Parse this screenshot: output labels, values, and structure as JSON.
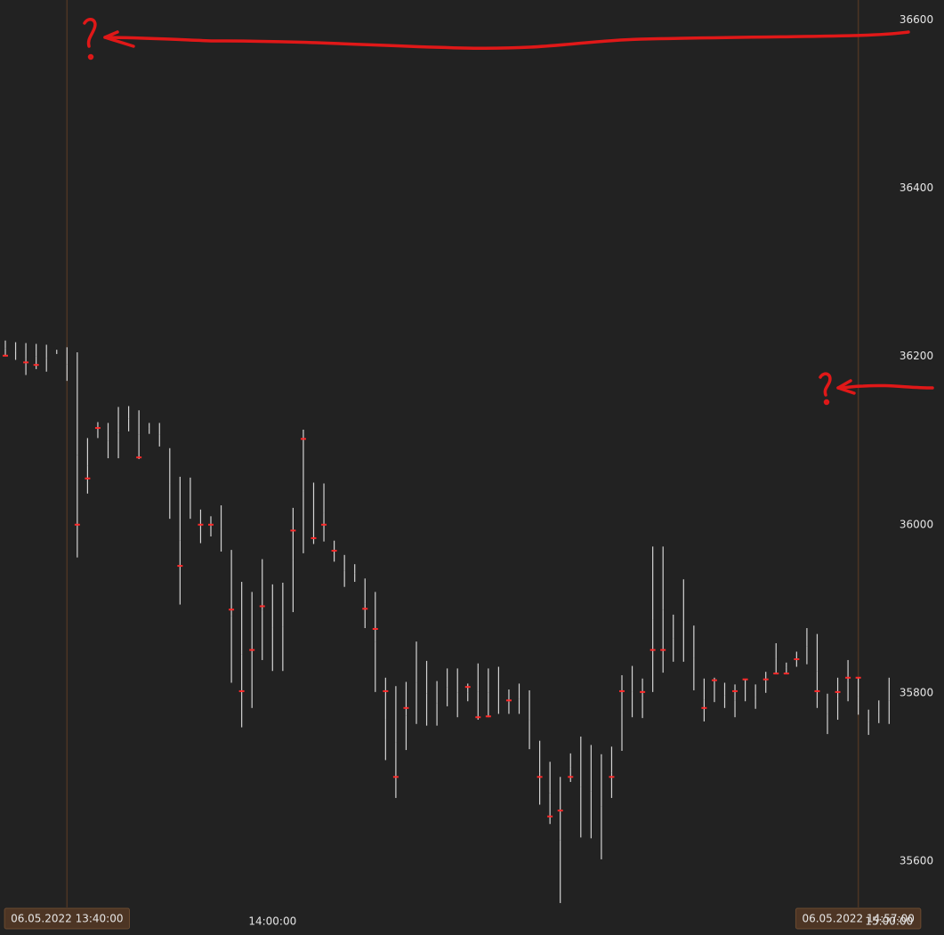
{
  "chart_data": {
    "type": "range-bar",
    "categories": [
      null,
      null,
      null,
      null,
      null,
      null,
      "06.05.2022 13:40:00",
      null,
      null,
      null,
      null,
      null,
      null,
      null,
      null,
      null,
      null,
      null,
      null,
      null,
      null,
      null,
      null,
      null,
      null,
      null,
      "14:00:00",
      null,
      null,
      null,
      null,
      null,
      null,
      null,
      null,
      null,
      null,
      null,
      null,
      null,
      null,
      null,
      null,
      null,
      null,
      null,
      null,
      null,
      null,
      null,
      null,
      null,
      null,
      null,
      null,
      null,
      null,
      null,
      null,
      null,
      null,
      null,
      null,
      null,
      null,
      null,
      null,
      null,
      null,
      null,
      null,
      null,
      null,
      null,
      null,
      null,
      null,
      null,
      null,
      null,
      null,
      null,
      null,
      "06.05.2022 14:57:00",
      null,
      null,
      "15:00:00"
    ],
    "highlighted": [
      6,
      83
    ],
    "high": [
      36219,
      36217,
      36216,
      36215,
      36214,
      36208,
      36211,
      36205,
      36103,
      36122,
      36121,
      36140,
      36141,
      36136,
      36121,
      36121,
      36091,
      36057,
      36056,
      36018,
      36010,
      36023,
      35970,
      35932,
      35920,
      35959,
      35929,
      35931,
      36020,
      36113,
      36050,
      36049,
      35981,
      35964,
      35953,
      35936,
      35920,
      35818,
      35808,
      35813,
      35861,
      35838,
      35814,
      35829,
      35829,
      35811,
      35835,
      35829,
      35831,
      35804,
      35811,
      35803,
      35743,
      35718,
      35700,
      35728,
      35748,
      35738,
      35727,
      35736,
      35821,
      35832,
      35817,
      35974,
      35974,
      35893,
      35935,
      35880,
      35817,
      35818,
      35812,
      35810,
      35816,
      35810,
      35825,
      35859,
      35836,
      35849,
      35877,
      35870,
      35799,
      35818,
      35839,
      35818,
      35780,
      35791,
      35818
    ],
    "low": [
      36201,
      36196,
      36178,
      36185,
      36182,
      36203,
      36171,
      35961,
      36037,
      36103,
      36079,
      36079,
      36111,
      36078,
      36108,
      36093,
      36007,
      35905,
      36007,
      35978,
      35986,
      35968,
      35812,
      35759,
      35782,
      35839,
      35826,
      35826,
      35896,
      35966,
      35977,
      35980,
      35956,
      35926,
      35932,
      35877,
      35801,
      35720,
      35675,
      35732,
      35763,
      35761,
      35761,
      35784,
      35771,
      35790,
      35768,
      35771,
      35775,
      35775,
      35775,
      35733,
      35667,
      35644,
      35550,
      35694,
      35628,
      35627,
      35602,
      35675,
      35731,
      35771,
      35770,
      35801,
      35824,
      35837,
      35837,
      35803,
      35766,
      35789,
      35782,
      35771,
      35790,
      35781,
      35800,
      35823,
      35823,
      35831,
      35834,
      35782,
      35751,
      35768,
      35790,
      35774,
      35750,
      35764,
      35763
    ],
    "poc": [
      36201,
      null,
      36193,
      36190,
      null,
      null,
      null,
      36000,
      36055,
      36115,
      null,
      null,
      null,
      36080,
      null,
      null,
      null,
      35951,
      null,
      36000,
      36000,
      null,
      35899,
      35802,
      35851,
      35903,
      null,
      null,
      35993,
      36102,
      35984,
      36000,
      35969,
      null,
      null,
      35900,
      35876,
      35802,
      35700,
      35782,
      null,
      null,
      null,
      null,
      null,
      35807,
      35771,
      35772,
      null,
      35791,
      null,
      null,
      35700,
      35653,
      35660,
      35700,
      null,
      null,
      null,
      35700,
      35802,
      null,
      35801,
      35851,
      35851,
      null,
      null,
      null,
      35782,
      35815,
      null,
      35802,
      35816,
      null,
      35816,
      35823,
      35823,
      35840,
      null,
      35802,
      null,
      35801,
      35818,
      35818,
      null,
      null,
      null
    ],
    "bar_color": "#d4d4d4",
    "poc_color": "#ff2a2a",
    "ylim": [
      35512,
      36624
    ],
    "yticks": [
      35600,
      35800,
      36000,
      36200,
      36400,
      36600
    ]
  }
}
